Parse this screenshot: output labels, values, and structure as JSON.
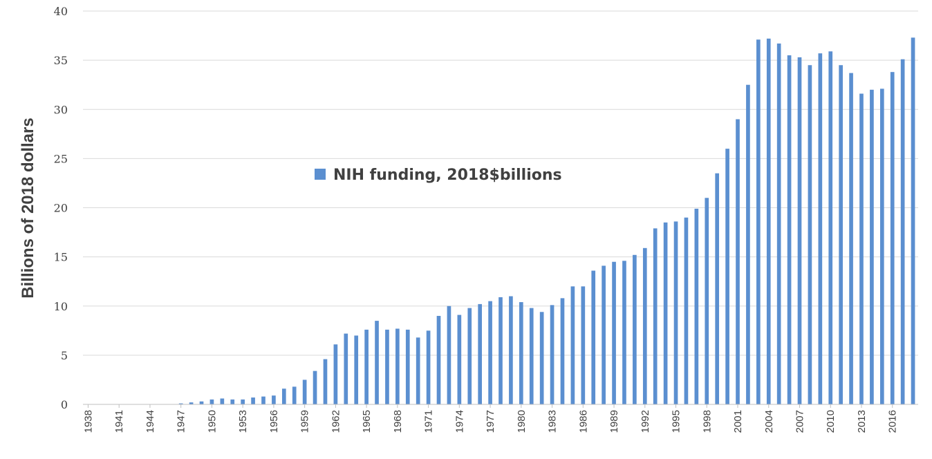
{
  "chart_data": {
    "type": "bar",
    "ylabel": "Billions of 2018 dollars",
    "xlabel": "",
    "ylim": [
      0,
      40
    ],
    "yticks": [
      0,
      5,
      10,
      15,
      20,
      25,
      30,
      35,
      40
    ],
    "grid": true,
    "legend": {
      "placement": "center-left"
    },
    "colors": {
      "bar": "#5b8fd0",
      "grid": "#d9d9d9",
      "axis": "#bfbfbf"
    },
    "x": [
      1938,
      1939,
      1940,
      1941,
      1942,
      1943,
      1944,
      1945,
      1946,
      1947,
      1948,
      1949,
      1950,
      1951,
      1952,
      1953,
      1954,
      1955,
      1956,
      1957,
      1958,
      1959,
      1960,
      1961,
      1962,
      1963,
      1964,
      1965,
      1966,
      1967,
      1968,
      1969,
      1970,
      1971,
      1972,
      1973,
      1974,
      1975,
      1976,
      1977,
      1978,
      1979,
      1980,
      1981,
      1982,
      1983,
      1984,
      1985,
      1986,
      1987,
      1988,
      1989,
      1990,
      1991,
      1992,
      1993,
      1994,
      1995,
      1996,
      1997,
      1998,
      1999,
      2000,
      2001,
      2002,
      2003,
      2004,
      2005,
      2006,
      2007,
      2008,
      2009,
      2010,
      2011,
      2012,
      2013,
      2014,
      2015,
      2016,
      2017,
      2018
    ],
    "xtick_labels": [
      "1938",
      "1941",
      "1944",
      "1947",
      "1950",
      "1953",
      "1956",
      "1959",
      "1962",
      "1965",
      "1968",
      "1971",
      "1974",
      "1977",
      "1980",
      "1983",
      "1986",
      "1989",
      "1992",
      "1995",
      "1998",
      "2001",
      "2004",
      "2007",
      "2010",
      "2013",
      "2016"
    ],
    "series": [
      {
        "name": "NIH funding, 2018$billions",
        "values": [
          0.0,
          0.0,
          0.0,
          0.0,
          0.0,
          0.0,
          0.0,
          0.0,
          0.0,
          0.1,
          0.2,
          0.3,
          0.5,
          0.6,
          0.5,
          0.5,
          0.7,
          0.8,
          0.9,
          1.6,
          1.8,
          2.5,
          3.4,
          4.6,
          6.1,
          7.2,
          7.0,
          7.6,
          8.5,
          7.6,
          7.7,
          7.6,
          6.8,
          7.5,
          9.0,
          10.0,
          9.1,
          9.8,
          10.2,
          10.5,
          10.9,
          11.0,
          10.4,
          9.8,
          9.4,
          10.1,
          10.8,
          12.0,
          12.0,
          13.6,
          14.1,
          14.5,
          14.6,
          15.2,
          15.9,
          17.9,
          18.5,
          18.6,
          19.0,
          19.9,
          21.0,
          23.5,
          26.0,
          29.0,
          32.5,
          37.1,
          37.2,
          36.7,
          35.5,
          35.3,
          34.5,
          35.7,
          35.9,
          34.5,
          33.7,
          31.6,
          32.0,
          32.1,
          33.8,
          35.1,
          37.3
        ]
      }
    ]
  }
}
